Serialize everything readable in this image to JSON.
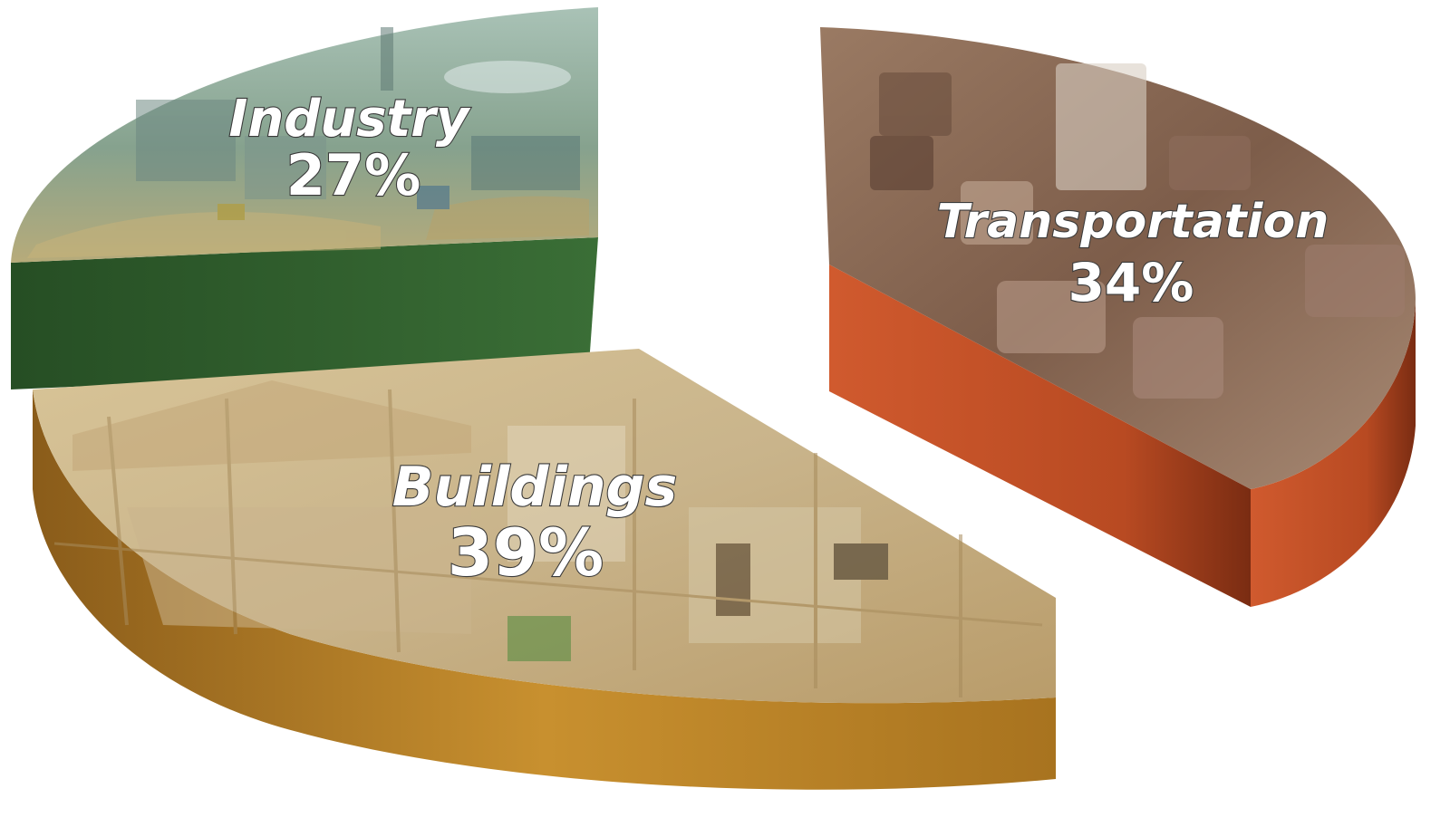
{
  "chart_data": {
    "type": "pie",
    "style": "3d-exploded",
    "categories": [
      "Industry",
      "Transportation",
      "Buildings"
    ],
    "values": [
      27,
      34,
      39
    ],
    "value_labels": [
      "27%",
      "34%",
      "39%"
    ],
    "colors": {
      "Industry": {
        "side": "#2f5f2d",
        "top": "#7fa08a"
      },
      "Transportation": {
        "side": "#c4532b",
        "top": "#8c6a55"
      },
      "Buildings": {
        "side": "#c28a2f",
        "top": "#cdb98f"
      }
    },
    "title": "",
    "legend": "none"
  }
}
